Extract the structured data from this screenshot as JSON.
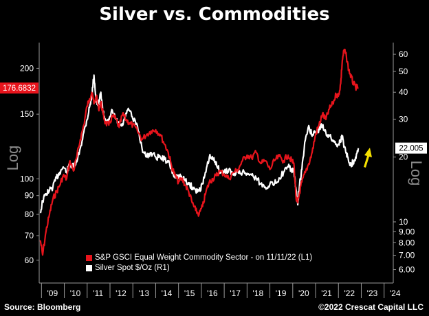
{
  "title": "Silver vs. Commodities",
  "footer": {
    "source": "Source: Bloomberg",
    "copyright": "©2022 Crescat Capital LLC"
  },
  "colors": {
    "commodity": "#e8141c",
    "silver": "#ffffff",
    "arrow": "#f5e000",
    "background": "#000000"
  },
  "chart_data": {
    "type": "line",
    "title": "Silver vs. Commodities",
    "left_axis_label": "Log",
    "right_axis_label": "Log",
    "left_scale": "log",
    "right_scale": "log",
    "left_ylim": [
      52,
      235
    ],
    "right_ylim": [
      5.2,
      68
    ],
    "left_ticks": [
      60,
      70,
      80,
      90,
      100,
      150,
      200
    ],
    "right_ticks": [
      "6.00",
      "7.00",
      "8.00",
      "9.00",
      "10",
      "20",
      "30",
      "40",
      "50",
      "60"
    ],
    "right_tick_values": [
      6,
      7,
      8,
      9,
      10,
      20,
      30,
      40,
      50,
      60
    ],
    "x_ticks": [
      "'09",
      "'10",
      "'11",
      "'12",
      "'13",
      "'14",
      "'15",
      "'16",
      "'17",
      "'18",
      "'19",
      "'20",
      "'21",
      "'22",
      "'23",
      "'24"
    ],
    "x_tick_values": [
      2009,
      2010,
      2011,
      2012,
      2013,
      2014,
      2015,
      2016,
      2017,
      2018,
      2019,
      2020,
      2021,
      2022,
      2023,
      2024
    ],
    "xlim": [
      2008.9,
      2024.4
    ],
    "last_values": {
      "commodity": "176.6832",
      "silver": "22.005"
    },
    "legend": [
      {
        "label": "S&P GSCI Equal Weight Commodity Sector -  on 11/11/22  (L1)",
        "series": "commodity"
      },
      {
        "label": "Silver Spot $/Oz  (R1)",
        "series": "silver"
      }
    ],
    "series": [
      {
        "key": "commodity",
        "axis": "left",
        "x": [
          2008.95,
          2009.05,
          2009.2,
          2009.35,
          2009.5,
          2009.65,
          2009.8,
          2009.95,
          2010.1,
          2010.25,
          2010.4,
          2010.55,
          2010.7,
          2010.85,
          2011.0,
          2011.1,
          2011.2,
          2011.3,
          2011.4,
          2011.5,
          2011.6,
          2011.7,
          2011.8,
          2011.95,
          2012.1,
          2012.25,
          2012.4,
          2012.55,
          2012.7,
          2012.85,
          2013.0,
          2013.2,
          2013.4,
          2013.6,
          2013.8,
          2014.0,
          2014.2,
          2014.4,
          2014.55,
          2014.7,
          2014.85,
          2015.0,
          2015.15,
          2015.3,
          2015.45,
          2015.6,
          2015.75,
          2015.9,
          2016.05,
          2016.2,
          2016.35,
          2016.5,
          2016.65,
          2016.8,
          2017.0,
          2017.2,
          2017.4,
          2017.6,
          2017.8,
          2018.0,
          2018.2,
          2018.4,
          2018.6,
          2018.8,
          2019.0,
          2019.2,
          2019.4,
          2019.6,
          2019.8,
          2019.95,
          2020.05,
          2020.15,
          2020.22,
          2020.3,
          2020.4,
          2020.55,
          2020.7,
          2020.85,
          2021.0,
          2021.15,
          2021.3,
          2021.45,
          2021.6,
          2021.75,
          2021.9,
          2022.0,
          2022.1,
          2022.17,
          2022.25,
          2022.35,
          2022.45,
          2022.55,
          2022.65,
          2022.75,
          2022.87
        ],
        "y": [
          68,
          62,
          72,
          80,
          88,
          92,
          96,
          102,
          100,
          112,
          105,
          115,
          128,
          140,
          158,
          165,
          172,
          160,
          168,
          155,
          162,
          150,
          142,
          140,
          148,
          146,
          138,
          150,
          145,
          142,
          140,
          135,
          128,
          132,
          135,
          136,
          132,
          124,
          118,
          108,
          102,
          98,
          100,
          96,
          92,
          86,
          82,
          80,
          84,
          92,
          98,
          100,
          102,
          105,
          103,
          100,
          104,
          106,
          112,
          116,
          114,
          118,
          110,
          112,
          106,
          112,
          115,
          112,
          116,
          112,
          110,
          88,
          86,
          92,
          98,
          104,
          110,
          118,
          132,
          140,
          150,
          145,
          155,
          160,
          170,
          168,
          182,
          210,
          225,
          215,
          198,
          190,
          182,
          178,
          176.68
        ]
      },
      {
        "key": "silver",
        "axis": "right",
        "x": [
          2008.95,
          2009.05,
          2009.2,
          2009.35,
          2009.5,
          2009.65,
          2009.8,
          2009.95,
          2010.1,
          2010.25,
          2010.4,
          2010.55,
          2010.7,
          2010.85,
          2011.0,
          2011.1,
          2011.2,
          2011.3,
          2011.4,
          2011.5,
          2011.6,
          2011.7,
          2011.8,
          2011.95,
          2012.1,
          2012.25,
          2012.4,
          2012.55,
          2012.7,
          2012.85,
          2013.0,
          2013.2,
          2013.4,
          2013.6,
          2013.8,
          2014.0,
          2014.2,
          2014.4,
          2014.55,
          2014.7,
          2014.85,
          2015.0,
          2015.15,
          2015.3,
          2015.45,
          2015.6,
          2015.75,
          2015.9,
          2016.05,
          2016.2,
          2016.35,
          2016.5,
          2016.65,
          2016.8,
          2017.0,
          2017.2,
          2017.4,
          2017.6,
          2017.8,
          2018.0,
          2018.2,
          2018.4,
          2018.6,
          2018.8,
          2019.0,
          2019.2,
          2019.4,
          2019.6,
          2019.8,
          2019.95,
          2020.05,
          2020.15,
          2020.22,
          2020.3,
          2020.4,
          2020.55,
          2020.7,
          2020.85,
          2021.0,
          2021.15,
          2021.3,
          2021.45,
          2021.6,
          2021.75,
          2021.9,
          2022.0,
          2022.1,
          2022.17,
          2022.25,
          2022.35,
          2022.45,
          2022.55,
          2022.65,
          2022.75,
          2022.87
        ],
        "y": [
          11,
          12.5,
          13.5,
          14,
          14.5,
          16,
          17,
          18,
          17,
          18.5,
          18,
          19,
          22,
          26,
          30,
          34,
          38,
          48,
          36,
          35,
          40,
          32,
          30,
          29,
          33,
          30,
          28,
          28,
          32,
          33,
          30,
          28,
          22,
          20,
          21,
          20,
          20,
          19.5,
          19,
          17.5,
          16,
          16.5,
          16,
          15.5,
          15,
          14.5,
          14,
          14,
          15,
          17,
          20,
          19.5,
          19,
          17,
          17,
          17.5,
          16.5,
          17,
          17,
          16.8,
          16.5,
          16,
          15,
          14.5,
          15,
          15,
          16,
          17,
          18,
          17.5,
          17,
          14,
          12,
          15,
          17.5,
          24,
          28,
          25,
          26,
          27,
          28,
          26,
          25,
          24,
          23,
          23,
          24,
          25,
          22.5,
          21,
          19,
          18.5,
          19,
          20,
          22.005
        ]
      }
    ]
  }
}
